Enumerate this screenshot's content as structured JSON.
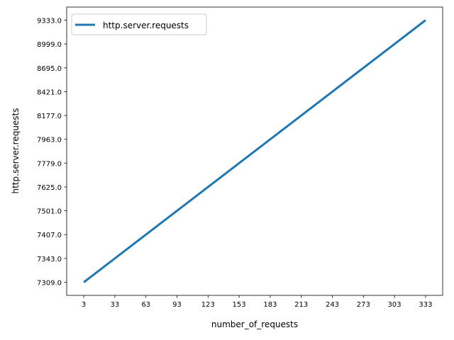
{
  "chart_data": {
    "type": "line",
    "xlabel": "number_of_requests",
    "ylabel": "http.server.requests",
    "x": [
      3,
      33,
      63,
      93,
      123,
      153,
      183,
      213,
      243,
      273,
      303,
      333
    ],
    "x_tick_labels": [
      "3",
      "33",
      "63",
      "93",
      "123",
      "153",
      "183",
      "213",
      "243",
      "273",
      "303",
      "333"
    ],
    "y_tick_labels": [
      "7309.0",
      "7343.0",
      "7407.0",
      "7501.0",
      "7625.0",
      "7779.0",
      "7963.0",
      "8177.0",
      "8421.0",
      "8695.0",
      "8999.0",
      "9333.0"
    ],
    "series": [
      {
        "name": "http.server.requests",
        "color": "#1f77b4",
        "values": [
          7309.0,
          7343.0,
          7407.0,
          7501.0,
          7625.0,
          7779.0,
          7963.0,
          8177.0,
          8421.0,
          8695.0,
          8999.0,
          9333.0
        ]
      }
    ],
    "y_axis_categorical": true,
    "grid": false,
    "legend_position": "top-left"
  }
}
